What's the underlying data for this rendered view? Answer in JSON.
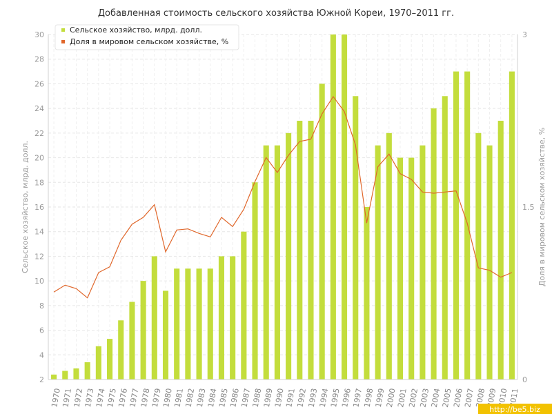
{
  "chart_data": {
    "type": "bar",
    "title": "Добавленная стоимость сельского хозяйства Южной Кореи, 1970–2011 гг.",
    "ylabel": "Сельское хозяйство, млрд. долл.",
    "y2label": "Доля в мировом сельском хозяйстве, %",
    "ylim": [
      2,
      30
    ],
    "y2lim": [
      0,
      3
    ],
    "y_ticks": [
      "2",
      "4",
      "6",
      "8",
      "10",
      "12",
      "14",
      "16",
      "18",
      "20",
      "22",
      "24",
      "26",
      "28",
      "30"
    ],
    "y2_ticks": [
      "0",
      "1.5",
      "3"
    ],
    "grid": true,
    "legend_position": "top-left",
    "categories": [
      "1970",
      "1971",
      "1972",
      "1973",
      "1974",
      "1975",
      "1976",
      "1977",
      "1978",
      "1979",
      "1980",
      "1981",
      "1982",
      "1983",
      "1984",
      "1985",
      "1986",
      "1987",
      "1988",
      "1989",
      "1990",
      "1991",
      "1992",
      "1993",
      "1994",
      "1995",
      "1996",
      "1997",
      "1998",
      "1999",
      "2000",
      "2001",
      "2002",
      "2003",
      "2004",
      "2005",
      "2006",
      "2007",
      "2008",
      "2009",
      "2010",
      "2011"
    ],
    "series": [
      {
        "name": "Сельское хозяйство, млрд. долл.",
        "type": "bar",
        "axis": "left",
        "color": "#c3dd3c",
        "values": [
          2.4,
          2.7,
          2.9,
          3.4,
          4.7,
          5.3,
          6.8,
          8.3,
          10,
          12,
          9.2,
          11,
          11,
          11,
          11,
          12,
          12,
          14,
          18,
          21,
          21,
          22,
          23,
          23,
          26,
          30,
          30,
          25,
          16,
          21,
          22,
          20,
          20,
          21,
          24,
          25,
          27,
          27,
          22,
          21,
          23,
          27
        ]
      },
      {
        "name": "Доля в мировом сельском хозяйстве, %",
        "type": "line",
        "axis": "right",
        "color": "#e0672b",
        "values": [
          0.76,
          0.82,
          0.79,
          0.71,
          0.93,
          0.98,
          1.21,
          1.35,
          1.41,
          1.52,
          1.11,
          1.3,
          1.31,
          1.27,
          1.24,
          1.41,
          1.33,
          1.48,
          1.72,
          1.93,
          1.8,
          1.95,
          2.07,
          2.09,
          2.31,
          2.46,
          2.33,
          2.04,
          1.36,
          1.85,
          1.96,
          1.79,
          1.74,
          1.63,
          1.62,
          1.63,
          1.64,
          1.36,
          0.97,
          0.95,
          0.89,
          0.93
        ]
      }
    ]
  },
  "watermark": "http://be5.biz"
}
